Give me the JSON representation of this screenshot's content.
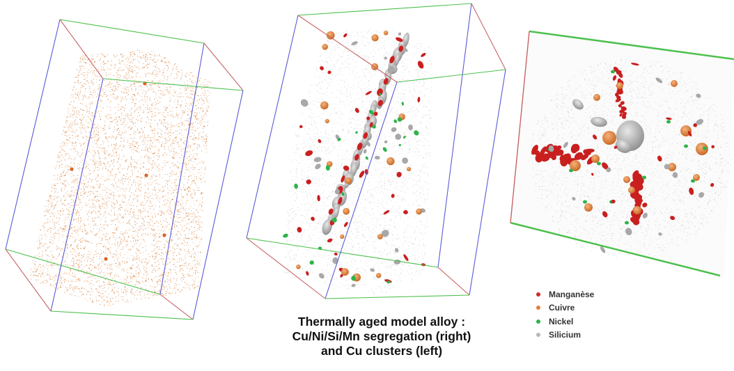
{
  "caption": {
    "line1": "Thermally aged model alloy :",
    "line2": "Cu/Ni/Si/Mn segregation (right)",
    "line3": "and Cu clusters (left)"
  },
  "legend": {
    "items": [
      {
        "label": "Manganèse",
        "color": "#d42a2a"
      },
      {
        "label": "Cuivre",
        "color": "#e5803a"
      },
      {
        "label": "Nickel",
        "color": "#2fb34a"
      },
      {
        "label": "Silicium",
        "color": "#b8b8b8"
      }
    ]
  },
  "colors": {
    "box_blue": "#5a5ad8",
    "box_green": "#4cc04c",
    "box_red": "#c86464",
    "cu_atoms": "#d9803a",
    "matrix_gray": "#c9c9c9"
  }
}
